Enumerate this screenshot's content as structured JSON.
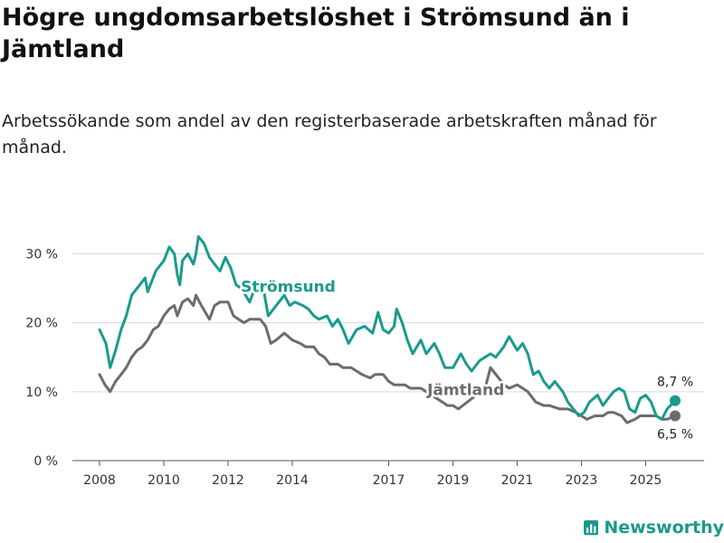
{
  "title": "Högre ungdomsarbetslöshet i Strömsund än i Jämtland",
  "subtitle": "Arbetssökande som andel av den registerbaserade arbetskraften månad för månad.",
  "brand": {
    "name": "Newsworthy",
    "icon": "bar-chart-icon",
    "color": "#1a9a8e"
  },
  "chart_data": {
    "type": "line",
    "title": "Högre ungdomsarbetslöshet i Strömsund än i Jämtland",
    "xlabel": "",
    "ylabel": "",
    "x_range": [
      2008.0,
      2025.917
    ],
    "ylim": [
      0,
      34
    ],
    "y_ticks": [
      0,
      10,
      20,
      30
    ],
    "y_tick_labels": [
      "0 %",
      "10 %",
      "20 %",
      "30 %"
    ],
    "x_ticks": [
      2008,
      2010,
      2012,
      2014,
      2017,
      2019,
      2021,
      2023,
      2025
    ],
    "x_tick_labels": [
      "2008",
      "2010",
      "2012",
      "2014",
      "2017",
      "2019",
      "2021",
      "2023",
      "2025"
    ],
    "grid": true,
    "series": [
      {
        "name": "Strömsund",
        "color": "#1a9a8e",
        "label_at": [
          2012.4,
          24.5
        ],
        "end_label": "8,7 %",
        "end_value": 8.7,
        "points": [
          [
            2008.0,
            19
          ],
          [
            2008.2,
            17
          ],
          [
            2008.33,
            13.5
          ],
          [
            2008.5,
            16
          ],
          [
            2008.67,
            19
          ],
          [
            2008.83,
            21
          ],
          [
            2009.0,
            24
          ],
          [
            2009.25,
            25.5
          ],
          [
            2009.42,
            26.5
          ],
          [
            2009.5,
            24.5
          ],
          [
            2009.75,
            27.5
          ],
          [
            2010.0,
            29
          ],
          [
            2010.17,
            31
          ],
          [
            2010.33,
            30
          ],
          [
            2010.42,
            27
          ],
          [
            2010.5,
            25.5
          ],
          [
            2010.58,
            29
          ],
          [
            2010.75,
            30
          ],
          [
            2010.92,
            28.5
          ],
          [
            2011.0,
            30
          ],
          [
            2011.08,
            32.5
          ],
          [
            2011.25,
            31.5
          ],
          [
            2011.42,
            29.5
          ],
          [
            2011.58,
            28.5
          ],
          [
            2011.75,
            27.5
          ],
          [
            2011.92,
            29.5
          ],
          [
            2012.08,
            28
          ],
          [
            2012.25,
            25.5
          ],
          [
            2012.42,
            25
          ],
          [
            2012.67,
            23
          ],
          [
            2012.92,
            26
          ],
          [
            2013.08,
            25.5
          ],
          [
            2013.25,
            21
          ],
          [
            2013.5,
            22.5
          ],
          [
            2013.75,
            24
          ],
          [
            2013.92,
            22.5
          ],
          [
            2014.08,
            23
          ],
          [
            2014.33,
            22.5
          ],
          [
            2014.5,
            22
          ],
          [
            2014.67,
            21
          ],
          [
            2014.83,
            20.5
          ],
          [
            2015.08,
            21
          ],
          [
            2015.25,
            19.5
          ],
          [
            2015.42,
            20.5
          ],
          [
            2015.58,
            19
          ],
          [
            2015.75,
            17
          ],
          [
            2016.0,
            19
          ],
          [
            2016.25,
            19.5
          ],
          [
            2016.5,
            18.5
          ],
          [
            2016.67,
            21.5
          ],
          [
            2016.83,
            19
          ],
          [
            2017.0,
            18.5
          ],
          [
            2017.17,
            19.5
          ],
          [
            2017.25,
            22
          ],
          [
            2017.42,
            20
          ],
          [
            2017.58,
            17.5
          ],
          [
            2017.75,
            15.5
          ],
          [
            2018.0,
            17.5
          ],
          [
            2018.17,
            15.5
          ],
          [
            2018.42,
            17
          ],
          [
            2018.58,
            15.5
          ],
          [
            2018.75,
            13.5
          ],
          [
            2019.0,
            13.5
          ],
          [
            2019.25,
            15.5
          ],
          [
            2019.42,
            14
          ],
          [
            2019.58,
            13
          ],
          [
            2019.83,
            14.5
          ],
          [
            2020.0,
            15
          ],
          [
            2020.17,
            15.5
          ],
          [
            2020.33,
            15
          ],
          [
            2020.58,
            16.5
          ],
          [
            2020.75,
            18
          ],
          [
            2021.0,
            16
          ],
          [
            2021.17,
            17
          ],
          [
            2021.33,
            15.5
          ],
          [
            2021.5,
            12.5
          ],
          [
            2021.67,
            13
          ],
          [
            2021.83,
            11.5
          ],
          [
            2022.0,
            10.5
          ],
          [
            2022.17,
            11.5
          ],
          [
            2022.42,
            10
          ],
          [
            2022.58,
            8.5
          ],
          [
            2022.75,
            7.5
          ],
          [
            2022.92,
            6.5
          ],
          [
            2023.08,
            7
          ],
          [
            2023.25,
            8.5
          ],
          [
            2023.5,
            9.5
          ],
          [
            2023.67,
            8
          ],
          [
            2023.83,
            9
          ],
          [
            2024.0,
            10
          ],
          [
            2024.17,
            10.5
          ],
          [
            2024.33,
            10
          ],
          [
            2024.5,
            7.5
          ],
          [
            2024.67,
            7
          ],
          [
            2024.83,
            9
          ],
          [
            2025.0,
            9.5
          ],
          [
            2025.17,
            8.5
          ],
          [
            2025.33,
            6.5
          ],
          [
            2025.5,
            6
          ],
          [
            2025.67,
            7.5
          ],
          [
            2025.917,
            8.7
          ]
        ]
      },
      {
        "name": "Jämtland",
        "color": "#6b6b70",
        "label_at": [
          2018.2,
          9.5
        ],
        "end_label": "6,5 %",
        "end_value": 6.5,
        "points": [
          [
            2008.0,
            12.5
          ],
          [
            2008.17,
            11
          ],
          [
            2008.33,
            10
          ],
          [
            2008.5,
            11.5
          ],
          [
            2008.67,
            12.5
          ],
          [
            2008.83,
            13.5
          ],
          [
            2009.0,
            15
          ],
          [
            2009.17,
            16
          ],
          [
            2009.33,
            16.5
          ],
          [
            2009.5,
            17.5
          ],
          [
            2009.67,
            19
          ],
          [
            2009.83,
            19.5
          ],
          [
            2010.0,
            21
          ],
          [
            2010.17,
            22
          ],
          [
            2010.33,
            22.5
          ],
          [
            2010.42,
            21
          ],
          [
            2010.58,
            23
          ],
          [
            2010.75,
            23.5
          ],
          [
            2010.92,
            22.5
          ],
          [
            2011.0,
            24
          ],
          [
            2011.17,
            22.5
          ],
          [
            2011.42,
            20.5
          ],
          [
            2011.58,
            22.5
          ],
          [
            2011.75,
            23
          ],
          [
            2012.0,
            23
          ],
          [
            2012.17,
            21
          ],
          [
            2012.33,
            20.5
          ],
          [
            2012.5,
            20
          ],
          [
            2012.67,
            20.5
          ],
          [
            2013.0,
            20.5
          ],
          [
            2013.17,
            19.5
          ],
          [
            2013.33,
            17
          ],
          [
            2013.5,
            17.5
          ],
          [
            2013.75,
            18.5
          ],
          [
            2014.0,
            17.5
          ],
          [
            2014.25,
            17
          ],
          [
            2014.42,
            16.5
          ],
          [
            2014.67,
            16.5
          ],
          [
            2014.83,
            15.5
          ],
          [
            2015.0,
            15
          ],
          [
            2015.17,
            14
          ],
          [
            2015.42,
            14
          ],
          [
            2015.58,
            13.5
          ],
          [
            2015.83,
            13.5
          ],
          [
            2016.0,
            13
          ],
          [
            2016.17,
            12.5
          ],
          [
            2016.42,
            12
          ],
          [
            2016.58,
            12.5
          ],
          [
            2016.83,
            12.5
          ],
          [
            2017.0,
            11.5
          ],
          [
            2017.17,
            11
          ],
          [
            2017.5,
            11
          ],
          [
            2017.67,
            10.5
          ],
          [
            2018.0,
            10.5
          ],
          [
            2018.17,
            10
          ],
          [
            2018.33,
            9.5
          ],
          [
            2018.5,
            9
          ],
          [
            2018.67,
            8.5
          ],
          [
            2018.83,
            8
          ],
          [
            2019.0,
            8
          ],
          [
            2019.17,
            7.5
          ],
          [
            2020.0,
            10.5
          ],
          [
            2020.17,
            13.5
          ],
          [
            2020.42,
            12
          ],
          [
            2020.58,
            11
          ],
          [
            2020.75,
            10.5
          ],
          [
            2021.0,
            11
          ],
          [
            2021.17,
            10.5
          ],
          [
            2021.33,
            10
          ],
          [
            2021.58,
            8.5
          ],
          [
            2021.83,
            8
          ],
          [
            2022.0,
            8
          ],
          [
            2022.33,
            7.5
          ],
          [
            2022.58,
            7.5
          ],
          [
            2022.83,
            7
          ],
          [
            2023.0,
            6.5
          ],
          [
            2023.17,
            6
          ],
          [
            2023.42,
            6.5
          ],
          [
            2023.67,
            6.5
          ],
          [
            2023.83,
            7
          ],
          [
            2024.0,
            7
          ],
          [
            2024.25,
            6.5
          ],
          [
            2024.42,
            5.5
          ],
          [
            2024.67,
            6
          ],
          [
            2024.83,
            6.5
          ],
          [
            2025.08,
            6.5
          ],
          [
            2025.33,
            6.5
          ],
          [
            2025.5,
            6
          ],
          [
            2025.67,
            6
          ],
          [
            2025.917,
            6.5
          ]
        ]
      }
    ]
  }
}
